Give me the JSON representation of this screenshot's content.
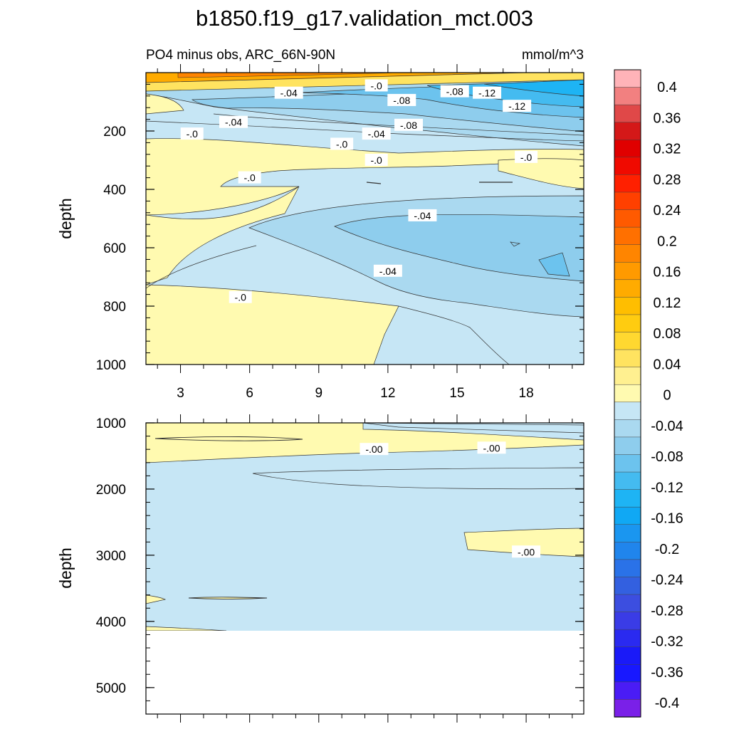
{
  "chart_data": {
    "type": "heatmap",
    "title": "b1850.f19_g17.validation_mct.003",
    "subtitle_left": "PO4 minus obs, ARC_66N-90N",
    "units": "mmol/m^3",
    "x_ticks": [
      "3",
      "6",
      "9",
      "12",
      "15",
      "18"
    ],
    "x_tick_values": [
      3,
      6,
      9,
      12,
      15,
      18
    ],
    "xlim": [
      1.5,
      20.5
    ],
    "panels": [
      {
        "ylabel": "depth",
        "ylim": [
          0,
          1000
        ],
        "y_ticks": [
          "200",
          "400",
          "600",
          "800",
          "1000"
        ],
        "y_tick_values": [
          200,
          400,
          600,
          800,
          1000
        ],
        "contour_labels": [
          {
            "text": "-.04",
            "x": 7.7,
            "y": 70
          },
          {
            "text": "-.0",
            "x": 11.5,
            "y": 45
          },
          {
            "text": "-.08",
            "x": 12.6,
            "y": 95
          },
          {
            "text": "-.08",
            "x": 14.9,
            "y": 65
          },
          {
            "text": "-.12",
            "x": 16.3,
            "y": 70
          },
          {
            "text": "-.12",
            "x": 17.6,
            "y": 115
          },
          {
            "text": "-.04",
            "x": 5.3,
            "y": 170
          },
          {
            "text": "-.08",
            "x": 12.9,
            "y": 180
          },
          {
            "text": "-.04",
            "x": 11.5,
            "y": 210
          },
          {
            "text": "-.0",
            "x": 3.5,
            "y": 210
          },
          {
            "text": "-.0",
            "x": 10.0,
            "y": 245
          },
          {
            "text": "-.0",
            "x": 11.5,
            "y": 300
          },
          {
            "text": "-.0",
            "x": 18.0,
            "y": 290
          },
          {
            "text": "-.0",
            "x": 6.0,
            "y": 360
          },
          {
            "text": "-.04",
            "x": 13.5,
            "y": 490
          },
          {
            "text": "-.04",
            "x": 12.0,
            "y": 680
          },
          {
            "text": "-.0",
            "x": 5.6,
            "y": 770
          }
        ]
      },
      {
        "ylabel": "depth",
        "ylim": [
          1000,
          5400
        ],
        "y_ticks": [
          "1000",
          "2000",
          "3000",
          "4000",
          "5000"
        ],
        "y_tick_values": [
          1000,
          2000,
          3000,
          4000,
          5000
        ],
        "contour_labels": [
          {
            "text": "-.00",
            "x": 11.4,
            "y": 1400
          },
          {
            "text": "-.00",
            "x": 16.5,
            "y": 1380
          },
          {
            "text": "-.00",
            "x": 18.0,
            "y": 2950
          }
        ]
      }
    ],
    "colorbar": {
      "labels": [
        "0.4",
        "0.36",
        "0.32",
        "0.28",
        "0.24",
        "0.2",
        "0.16",
        "0.12",
        "0.08",
        "0.04",
        "0",
        "-0.04",
        "-0.08",
        "-0.12",
        "-0.16",
        "-0.2",
        "-0.24",
        "-0.28",
        "-0.32",
        "-0.36",
        "-0.4"
      ],
      "colors": [
        "#ffb3b8",
        "#f28080",
        "#e04848",
        "#d41818",
        "#e00000",
        "#f00a00",
        "#ff2000",
        "#ff4000",
        "#ff5a00",
        "#ff7000",
        "#ff8500",
        "#ff9a00",
        "#ffab00",
        "#ffbe00",
        "#ffcc10",
        "#ffd830",
        "#ffe360",
        "#fff090",
        "#fffab0",
        "#c6e6f5",
        "#aad9f0",
        "#8ecded",
        "#6cc3ee",
        "#44bbf0",
        "#1eb4f4",
        "#10a8f4",
        "#1a96f0",
        "#2085ec",
        "#2a72e8",
        "#3360e0",
        "#3c4ee0",
        "#3a3ce6",
        "#2a2af0",
        "#1a1af8",
        "#1818ff",
        "#4a1cf5",
        "#7a20e8"
      ]
    }
  }
}
